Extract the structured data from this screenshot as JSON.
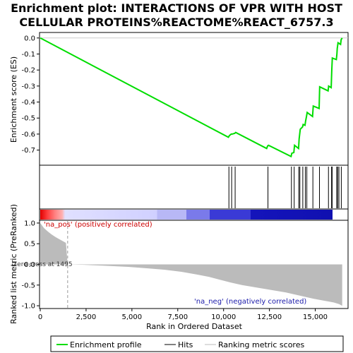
{
  "title_lines": [
    "Enrichment plot: INTERACTIONS OF VPR WITH HOST",
    "CELLULAR PROTEINS%REACTOME%REACT_6757.3"
  ],
  "colors": {
    "enrichment_line": "#00dd00",
    "hit_line": "#000000",
    "metric_fill": "#bbbbbb",
    "zero_cross_line": "#999999",
    "frame": "#000000",
    "annot_pos": "#cc0000",
    "annot_neg": "#1a1aaa"
  },
  "chart_data": [
    {
      "type": "line",
      "name": "enrichment-profile",
      "ylabel": "Enrichment score (ES)",
      "xlim": [
        0,
        16750
      ],
      "ylim": [
        -0.79,
        0.03
      ],
      "yticks": [
        0.0,
        -0.1,
        -0.2,
        -0.3,
        -0.4,
        -0.5,
        -0.6,
        -0.7
      ],
      "ytick_labels": [
        "0.0",
        "-0.1",
        "-0.2",
        "-0.3",
        "-0.4",
        "-0.5",
        "-0.6",
        "-0.7"
      ],
      "points": [
        [
          0,
          0.0
        ],
        [
          10260,
          -0.62
        ],
        [
          10310,
          -0.61
        ],
        [
          10420,
          -0.6
        ],
        [
          10470,
          -0.6
        ],
        [
          10610,
          -0.595
        ],
        [
          10660,
          -0.59
        ],
        [
          12350,
          -0.69
        ],
        [
          12400,
          -0.675
        ],
        [
          12450,
          -0.67
        ],
        [
          13680,
          -0.74
        ],
        [
          13720,
          -0.72
        ],
        [
          13830,
          -0.715
        ],
        [
          13870,
          -0.67
        ],
        [
          14090,
          -0.69
        ],
        [
          14120,
          -0.63
        ],
        [
          14150,
          -0.6
        ],
        [
          14180,
          -0.57
        ],
        [
          14310,
          -0.555
        ],
        [
          14340,
          -0.54
        ],
        [
          14440,
          -0.545
        ],
        [
          14470,
          -0.52
        ],
        [
          14520,
          -0.49
        ],
        [
          14560,
          -0.465
        ],
        [
          14850,
          -0.49
        ],
        [
          14890,
          -0.425
        ],
        [
          15210,
          -0.44
        ],
        [
          15240,
          -0.305
        ],
        [
          15700,
          -0.33
        ],
        [
          15730,
          -0.3
        ],
        [
          15870,
          -0.31
        ],
        [
          15900,
          -0.205
        ],
        [
          15930,
          -0.125
        ],
        [
          16150,
          -0.135
        ],
        [
          16180,
          -0.1
        ],
        [
          16200,
          -0.065
        ],
        [
          16240,
          -0.03
        ],
        [
          16380,
          -0.04
        ],
        [
          16410,
          -0.01
        ],
        [
          16470,
          0.0
        ]
      ]
    },
    {
      "type": "hits",
      "name": "hits",
      "positions": [
        10290,
        10440,
        10630,
        12420,
        13700,
        13850,
        14100,
        14160,
        14320,
        14460,
        14540,
        14870,
        15230,
        15720,
        15890,
        15920,
        16170,
        16220,
        16290,
        16420
      ]
    },
    {
      "type": "area",
      "name": "ranking-metric",
      "ylabel": "Ranked list metric (PreRanked)",
      "xlabel": "Rank in Ordered Dataset",
      "xlim": [
        0,
        16750
      ],
      "ylim": [
        -1.05,
        1.05
      ],
      "xticks": [
        0,
        2500,
        5000,
        7500,
        10000,
        12500,
        15000
      ],
      "xtick_labels": [
        "0",
        "2,500",
        "5,000",
        "7,500",
        "10,000",
        "12,500",
        "15,000"
      ],
      "yticks": [
        1.0,
        0.5,
        0.0,
        -0.5,
        -1.0
      ],
      "ytick_labels": [
        "1.0",
        "0.5",
        "0.0",
        "-0.5",
        "-1.0"
      ],
      "points": [
        [
          0,
          1.0
        ],
        [
          200,
          0.88
        ],
        [
          400,
          0.8
        ],
        [
          600,
          0.73
        ],
        [
          800,
          0.67
        ],
        [
          1000,
          0.62
        ],
        [
          1200,
          0.57
        ],
        [
          1400,
          0.52
        ],
        [
          1495,
          0.0
        ],
        [
          2400,
          -0.01
        ],
        [
          3400,
          -0.03
        ],
        [
          4800,
          -0.06
        ],
        [
          6000,
          -0.1
        ],
        [
          6800,
          -0.13
        ],
        [
          7700,
          -0.18
        ],
        [
          8500,
          -0.24
        ],
        [
          9200,
          -0.3
        ],
        [
          9800,
          -0.37
        ],
        [
          10400,
          -0.44
        ],
        [
          11000,
          -0.5
        ],
        [
          11800,
          -0.56
        ],
        [
          12600,
          -0.62
        ],
        [
          13400,
          -0.68
        ],
        [
          14200,
          -0.76
        ],
        [
          14900,
          -0.83
        ],
        [
          15500,
          -0.88
        ],
        [
          16000,
          -0.92
        ],
        [
          16300,
          -0.96
        ],
        [
          16470,
          -1.0
        ]
      ],
      "zero_cross": 1495
    }
  ],
  "annotations": {
    "na_pos": "'na_pos' (positively correlated)",
    "na_neg": "'na_neg' (negatively correlated)",
    "zero_cross": "Zero cross at 1495"
  },
  "legend": {
    "items": [
      {
        "label": "Enrichment profile",
        "color": "#00dd00"
      },
      {
        "label": "Hits",
        "color": "#000000"
      },
      {
        "label": "Ranking metric scores",
        "color": "#bbbbbb"
      }
    ]
  }
}
